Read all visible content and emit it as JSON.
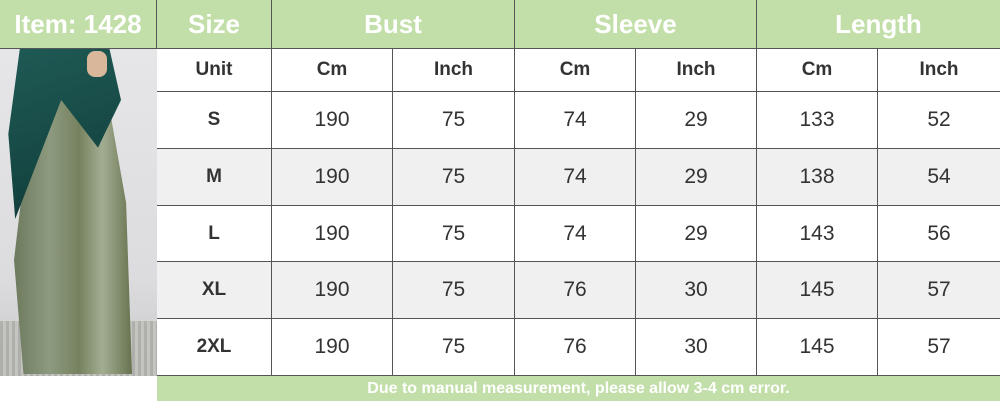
{
  "item_label": "Item: 1428",
  "headers": {
    "size": "Size",
    "bust": "Bust",
    "sleeve": "Sleeve",
    "length": "Length"
  },
  "unit_row": [
    "Unit",
    "Cm",
    "Inch",
    "Cm",
    "Inch",
    "Cm",
    "Inch"
  ],
  "rows": [
    [
      "S",
      "190",
      "75",
      "74",
      "29",
      "133",
      "52"
    ],
    [
      "M",
      "190",
      "75",
      "74",
      "29",
      "138",
      "54"
    ],
    [
      "L",
      "190",
      "75",
      "74",
      "29",
      "143",
      "56"
    ],
    [
      "XL",
      "190",
      "75",
      "76",
      "30",
      "145",
      "57"
    ],
    [
      "2XL",
      "190",
      "75",
      "76",
      "30",
      "145",
      "57"
    ]
  ],
  "footer_note": "Due to manual measurement, please allow 3-4 cm error.",
  "colors": {
    "header_green": "#c3dfa9",
    "stripe_gray": "#f0f0f0",
    "border": "#555555"
  },
  "product_image": "green satin abaya with teal hijab"
}
